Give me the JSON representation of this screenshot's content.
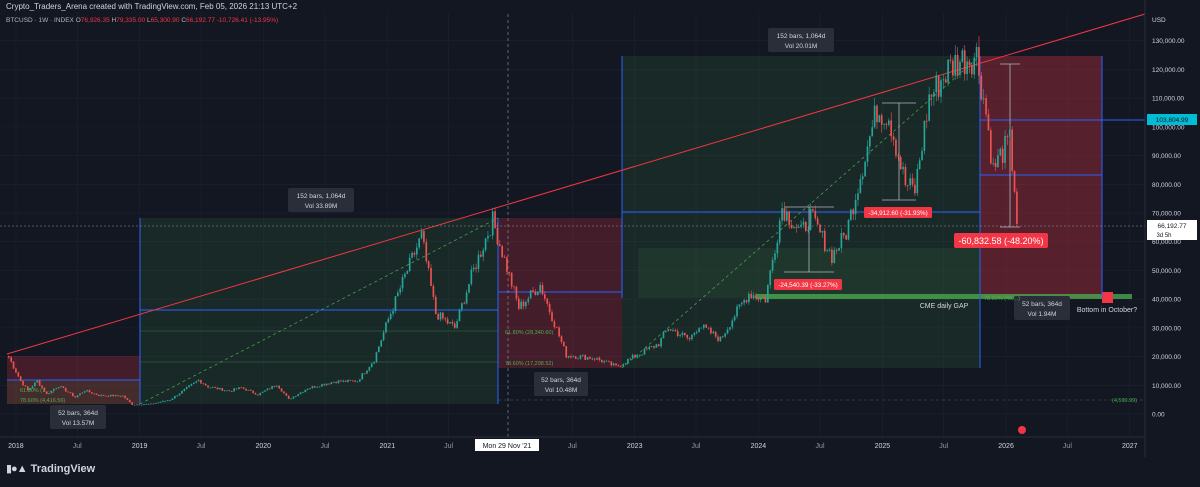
{
  "header": {
    "credit": "Crypto_Traders_Arena created with TradingView.com, Feb 05, 2026 21:13 UTC+2",
    "symbol": "BTCUSD · 1W · INDEX",
    "open_label": "O",
    "open": "76,926.35",
    "high_label": "H",
    "high": "79,335.00",
    "low_label": "L",
    "low": "65,300.90",
    "close_label": "C",
    "close": "66,192.77",
    "change": "-10,726.41 (-13.95%)"
  },
  "footer": {
    "brand": "TradingView",
    "logo_icon": "tradingview-logo-icon"
  },
  "colors": {
    "background": "#131722",
    "grid": "#1e2230",
    "up": "#26a69a",
    "down": "#ef5350",
    "trendline": "#f23645",
    "ruler": "#2962ff",
    "cyan_label": "#00bcd4",
    "green_zone": "rgba(76,175,80,0.12)",
    "red_zone": "rgba(242,54,69,0.22)",
    "cme_gap": "#4caf50"
  },
  "chart_data": {
    "type": "candlestick",
    "title": "BTCUSD · 1W · INDEX",
    "xlabel": "",
    "ylabel": "",
    "y_unit": "USD",
    "ylim": [
      -8000,
      140000
    ],
    "xlim": [
      "2017-11-15",
      "2027-02-15"
    ],
    "grid": true,
    "current_price": "66,192.77",
    "current_countdown": "3d 5h",
    "level_label": "103,804.99",
    "x_ticks": [
      {
        "label": "2018",
        "date": "2018-01-01"
      },
      {
        "label": "Jul",
        "date": "2018-07-01"
      },
      {
        "label": "2019",
        "date": "2019-01-01"
      },
      {
        "label": "Jul",
        "date": "2019-07-01"
      },
      {
        "label": "2020",
        "date": "2020-01-01"
      },
      {
        "label": "Jul",
        "date": "2020-07-01"
      },
      {
        "label": "2021",
        "date": "2021-01-01"
      },
      {
        "label": "Jul",
        "date": "2021-07-01"
      },
      {
        "label": "Jul",
        "date": "2022-07-01"
      },
      {
        "label": "2023",
        "date": "2023-01-01"
      },
      {
        "label": "Jul",
        "date": "2023-07-01"
      },
      {
        "label": "2024",
        "date": "2024-01-01"
      },
      {
        "label": "Jul",
        "date": "2024-07-01"
      },
      {
        "label": "2025",
        "date": "2025-01-01"
      },
      {
        "label": "Jul",
        "date": "2025-07-01"
      },
      {
        "label": "2026",
        "date": "2026-01-01"
      },
      {
        "label": "Jul",
        "date": "2026-07-01"
      },
      {
        "label": "2027",
        "date": "2027-01-01"
      }
    ],
    "crosshair_label": "Mon 29 Nov '21",
    "crosshair_date": "2021-11-29",
    "y_ticks": [
      {
        "label": "130,000.00",
        "value": 130000
      },
      {
        "label": "120,000.00",
        "value": 120000
      },
      {
        "label": "110,000.00",
        "value": 110000
      },
      {
        "label": "100,000.00",
        "value": 100000
      },
      {
        "label": "90,000.00",
        "value": 90000
      },
      {
        "label": "80,000.00",
        "value": 80000
      },
      {
        "label": "70,000.00",
        "value": 70000
      },
      {
        "label": "60,000.00",
        "value": 60000
      },
      {
        "label": "50,000.00",
        "value": 50000
      },
      {
        "label": "40,000.00",
        "value": 40000
      },
      {
        "label": "30,000.00",
        "value": 30000
      },
      {
        "label": "20,000.00",
        "value": 20000
      },
      {
        "label": "10,000.00",
        "value": 10000
      },
      {
        "label": "0.00",
        "value": 0
      }
    ],
    "series": [
      {
        "interval": "1W",
        "points": [
          [
            "2017-12-11",
            19800
          ],
          [
            "2018-01-15",
            11500
          ],
          [
            "2018-02-05",
            8200
          ],
          [
            "2018-03-05",
            11500
          ],
          [
            "2018-04-02",
            6900
          ],
          [
            "2018-05-07",
            9800
          ],
          [
            "2018-06-25",
            5900
          ],
          [
            "2018-07-23",
            8200
          ],
          [
            "2018-09-03",
            6500
          ],
          [
            "2018-11-12",
            6300
          ],
          [
            "2018-12-10",
            3300
          ],
          [
            "2019-02-04",
            3500
          ],
          [
            "2019-04-01",
            5000
          ],
          [
            "2019-06-24",
            11800
          ],
          [
            "2019-07-22",
            9500
          ],
          [
            "2019-09-23",
            8000
          ],
          [
            "2019-10-28",
            9200
          ],
          [
            "2019-12-16",
            6800
          ],
          [
            "2020-02-10",
            10300
          ],
          [
            "2020-03-16",
            5100
          ],
          [
            "2020-05-11",
            9000
          ],
          [
            "2020-07-27",
            11300
          ],
          [
            "2020-10-05",
            11500
          ],
          [
            "2020-11-23",
            19000
          ],
          [
            "2021-01-04",
            33000
          ],
          [
            "2021-02-22",
            48000
          ],
          [
            "2021-04-12",
            62000
          ],
          [
            "2021-05-24",
            35000
          ],
          [
            "2021-07-19",
            30000
          ],
          [
            "2021-09-06",
            48000
          ],
          [
            "2021-11-08",
            67500
          ],
          [
            "2022-01-24",
            37000
          ],
          [
            "2022-03-28",
            45000
          ],
          [
            "2022-06-13",
            20500
          ],
          [
            "2022-09-05",
            19500
          ],
          [
            "2022-11-07",
            16500
          ],
          [
            "2023-01-16",
            21000
          ],
          [
            "2023-03-13",
            24500
          ],
          [
            "2023-04-10",
            30000
          ],
          [
            "2023-06-12",
            26000
          ],
          [
            "2023-07-10",
            31000
          ],
          [
            "2023-09-11",
            26000
          ],
          [
            "2023-10-23",
            34500
          ],
          [
            "2023-12-04",
            42000
          ],
          [
            "2024-01-22",
            40000
          ],
          [
            "2024-03-11",
            72000
          ],
          [
            "2024-05-06",
            63000
          ],
          [
            "2024-06-03",
            69000
          ],
          [
            "2024-08-05",
            55000
          ],
          [
            "2024-09-16",
            63000
          ],
          [
            "2024-11-11",
            90000
          ],
          [
            "2024-12-16",
            106000
          ],
          [
            "2025-01-20",
            104000
          ],
          [
            "2025-03-10",
            80000
          ],
          [
            "2025-04-07",
            78000
          ],
          [
            "2025-05-19",
            110000
          ],
          [
            "2025-07-14",
            120000
          ],
          [
            "2025-08-11",
            123000
          ],
          [
            "2025-10-06",
            125000
          ],
          [
            "2025-11-03",
            105000
          ],
          [
            "2025-11-24",
            85000
          ],
          [
            "2025-12-15",
            90000
          ],
          [
            "2026-01-12",
            95000
          ],
          [
            "2026-01-26",
            79000
          ],
          [
            "2026-02-02",
            66192
          ]
        ]
      }
    ],
    "annotations": {
      "stats_2018": {
        "line1": "52 bars, 364d",
        "line2": "Vol 13.57M"
      },
      "stats_2019": {
        "line1": "152 bars, 1,064d",
        "line2": "Vol 33.89M"
      },
      "stats_2022": {
        "line1": "52 bars, 364d",
        "line2": "Vol 10.48M"
      },
      "stats_2023": {
        "line1": "152 bars, 1,064d",
        "line2": "Vol 20.01M"
      },
      "stats_2026": {
        "line1": "52 bars, 364d",
        "line2": "Vol 1.94M"
      },
      "fib_2018": {
        "l1": "61.80% (7,... )",
        "l2": "78.60% (4,416.56)"
      },
      "fib_2022": {
        "l1": "61.80% (28,340.60)",
        "l2": "78.60% (17,298.52)"
      },
      "fib_low_right": "(4,599.99)",
      "fib_cme": "78.60% (40,...)",
      "drop_2024": "-24,540.39 (-33.27%)",
      "drop_2025": "-34,912.60 (-31.93%)",
      "drop_2026": "-60,832.58 (-48.20%)",
      "cme_gap": "CME daily GAP",
      "bottom_question": "Bottom in October?"
    }
  }
}
